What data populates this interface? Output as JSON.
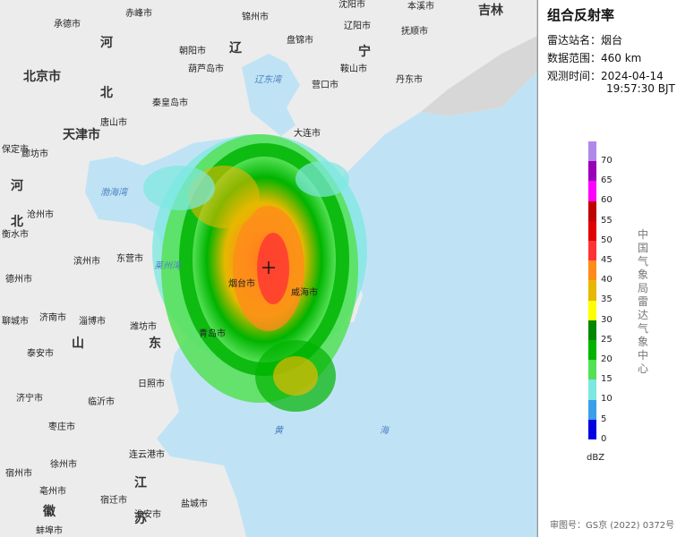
{
  "panel": {
    "title": "组合反射率",
    "station_label": "雷达站名：",
    "station_value": "烟台",
    "range_label": "数据范围：",
    "range_value": "460 km",
    "time_label": "观测时间：",
    "time_date": "2024-04-14",
    "time_clock": "19:57:30 BJT",
    "vertical_text": "中国气象局雷达气象中心",
    "approval": "审图号：GS京 (2022) 0372号"
  },
  "legend": {
    "unit": "dBZ",
    "levels": [
      {
        "label": "70",
        "color": "#b187ea"
      },
      {
        "label": "65",
        "color": "#9a00b8"
      },
      {
        "label": "60",
        "color": "#ff00ff"
      },
      {
        "label": "55",
        "color": "#c00000"
      },
      {
        "label": "50",
        "color": "#e00000"
      },
      {
        "label": "45",
        "color": "#ff3333"
      },
      {
        "label": "40",
        "color": "#ff8c1a"
      },
      {
        "label": "35",
        "color": "#e6b800"
      },
      {
        "label": "30",
        "color": "#ffff00"
      },
      {
        "label": "25",
        "color": "#008800"
      },
      {
        "label": "20",
        "color": "#00b400"
      },
      {
        "label": "15",
        "color": "#55e055"
      },
      {
        "label": "10",
        "color": "#7de8e0"
      },
      {
        "label": "5",
        "color": "#3c9ee8"
      },
      {
        "label": "0",
        "color": "#0000e0"
      }
    ]
  },
  "map": {
    "radar_marker": "crosshair-icon",
    "cities": [
      {
        "name": "承德市"
      },
      {
        "name": "赤峰市"
      },
      {
        "name": "锦州市"
      },
      {
        "name": "沈阳市"
      },
      {
        "name": "抚顺市"
      },
      {
        "name": "朝阳市"
      },
      {
        "name": "盘锦市"
      },
      {
        "name": "辽阳市"
      },
      {
        "name": "本溪市"
      },
      {
        "name": "葫芦岛市"
      },
      {
        "name": "鞍山市"
      },
      {
        "name": "丹东市"
      },
      {
        "name": "营口市"
      },
      {
        "name": "秦皇岛市"
      },
      {
        "name": "唐山市"
      },
      {
        "name": "大连市"
      },
      {
        "name": "北京市"
      },
      {
        "name": "天津市"
      },
      {
        "name": "廊坊市"
      },
      {
        "name": "沧州市"
      },
      {
        "name": "保定市"
      },
      {
        "name": "衡水市"
      },
      {
        "name": "德州市"
      },
      {
        "name": "滨州市"
      },
      {
        "name": "东营市"
      },
      {
        "name": "烟台市"
      },
      {
        "name": "威海市"
      },
      {
        "name": "济南市"
      },
      {
        "name": "淄博市"
      },
      {
        "name": "潍坊市"
      },
      {
        "name": "青岛市"
      },
      {
        "name": "聊城市"
      },
      {
        "name": "泰安市"
      },
      {
        "name": "济宁市"
      },
      {
        "name": "临沂市"
      },
      {
        "name": "日照市"
      },
      {
        "name": "枣庄市"
      },
      {
        "name": "徐州市"
      },
      {
        "name": "连云港市"
      },
      {
        "name": "宿迁市"
      },
      {
        "name": "淮安市"
      },
      {
        "name": "盐城市"
      },
      {
        "name": "宿州市"
      },
      {
        "name": "亳州市"
      },
      {
        "name": "蚌埠市"
      }
    ],
    "provinces": [
      {
        "name": "吉林"
      },
      {
        "name": "河"
      },
      {
        "name": "辽"
      },
      {
        "name": "宁"
      },
      {
        "name": "北"
      },
      {
        "name": "北京市"
      },
      {
        "name": "天津市"
      },
      {
        "name": "河"
      },
      {
        "name": "北"
      },
      {
        "name": "山"
      },
      {
        "name": "东"
      },
      {
        "name": "江"
      },
      {
        "name": "苏"
      },
      {
        "name": "徽"
      }
    ],
    "seas": [
      {
        "name": "辽东湾"
      },
      {
        "name": "渤海湾"
      },
      {
        "name": "莱州湾"
      },
      {
        "name": "黄"
      },
      {
        "name": "海"
      }
    ]
  }
}
